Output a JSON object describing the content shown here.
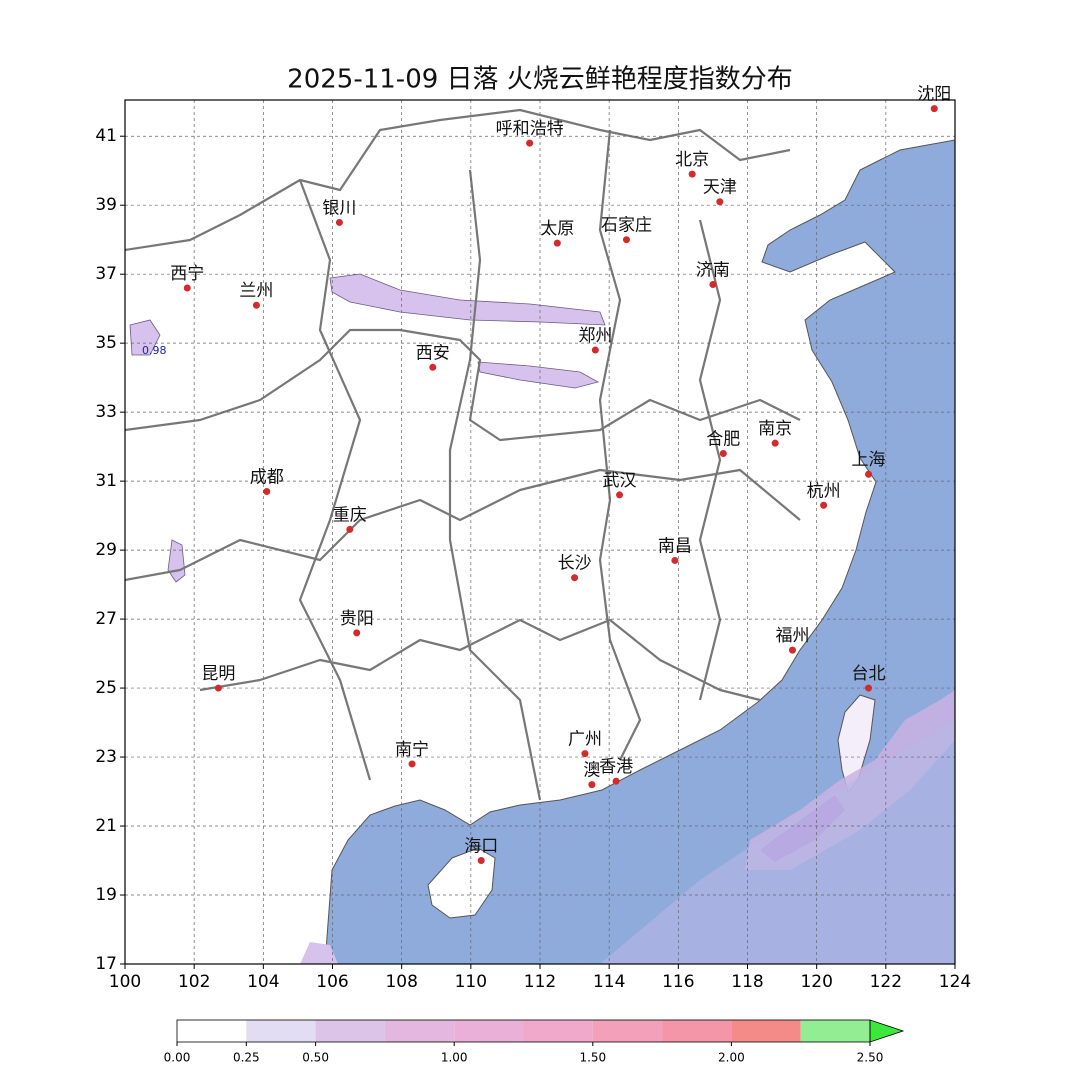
{
  "chart_data": {
    "type": "map",
    "title": "2025-11-09 日落 火烧云鲜艳程度指数分布",
    "xlim": [
      100,
      124
    ],
    "ylim": [
      17,
      42.05
    ],
    "xticks": [
      100,
      102,
      104,
      106,
      108,
      110,
      112,
      114,
      116,
      118,
      120,
      122,
      124
    ],
    "yticks": [
      17,
      19,
      21,
      23,
      25,
      27,
      29,
      31,
      33,
      35,
      37,
      39,
      41
    ],
    "grid": true,
    "cities": [
      "沈阳",
      "呼和浩特",
      "北京",
      "天津",
      "银川",
      "太原",
      "石家庄",
      "西宁",
      "兰州",
      "济南",
      "郑州",
      "西安",
      "合肥",
      "南京",
      "上海",
      "成都",
      "武汉",
      "杭州",
      "重庆",
      "南昌",
      "长沙",
      "贵阳",
      "福州",
      "台北",
      "昆明",
      "广州",
      "南宁",
      "澳",
      "香港",
      "海口"
    ],
    "contour_label": "0.98",
    "colorbar": {
      "levels": [
        0,
        0.25,
        0.5,
        0.75,
        1.0,
        1.25,
        1.5,
        1.75,
        2.0,
        2.25,
        2.5
      ],
      "colors": [
        "#ffffff",
        "#e2ddf3",
        "#dcc3e8",
        "#e3b7e0",
        "#eab0d8",
        "#f0a9cb",
        "#f3a0bb",
        "#f496a8",
        "#f58b89",
        "#93ee93",
        "#3de83d"
      ],
      "ticks": [
        {
          "value": 0,
          "label": "0.00"
        },
        {
          "value": 0.25,
          "label": "0.25"
        },
        {
          "value": 0.5,
          "label": "0.50"
        },
        {
          "value": 1.0,
          "label": "1.00"
        },
        {
          "value": 1.5,
          "label": "1.50"
        },
        {
          "value": 2.0,
          "label": "2.00"
        },
        {
          "value": 2.5,
          "label": "2.50"
        }
      ]
    }
  }
}
